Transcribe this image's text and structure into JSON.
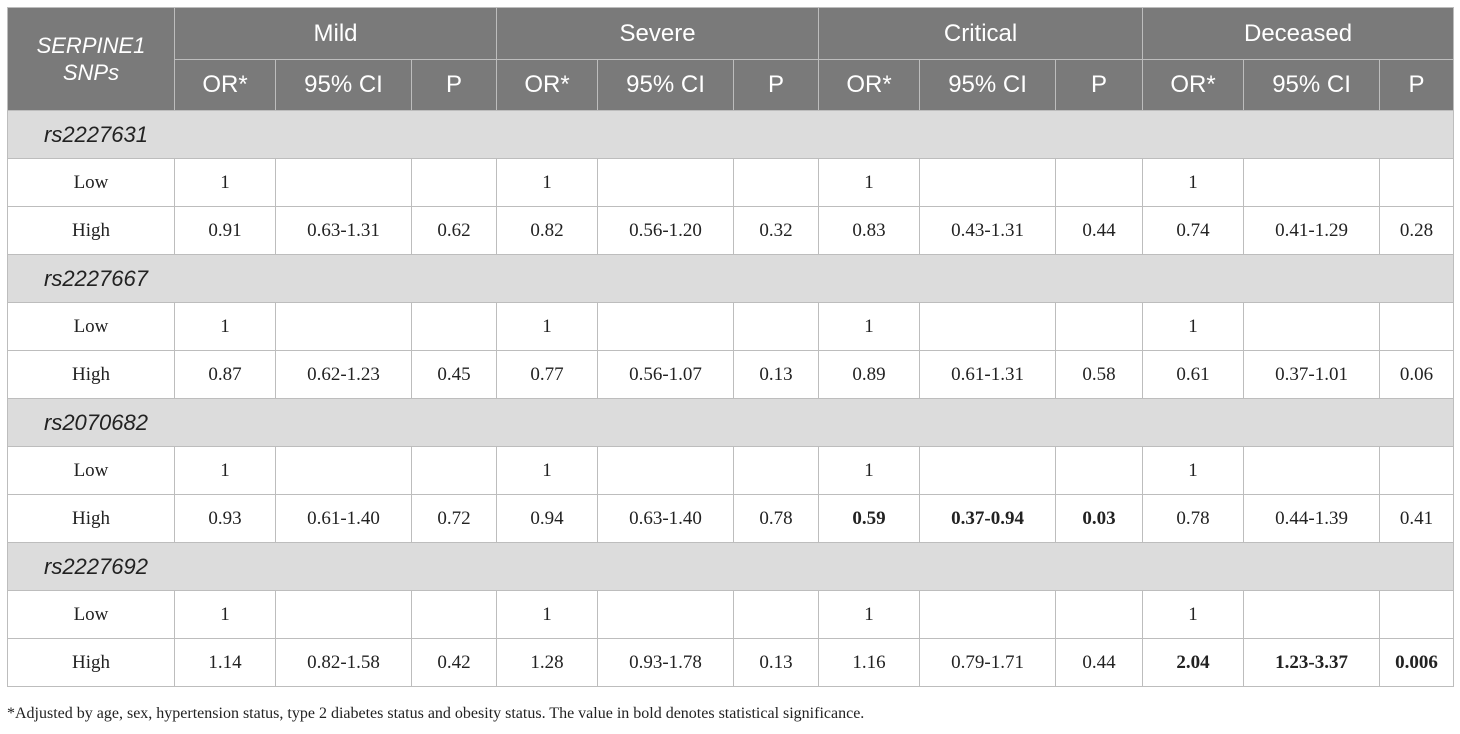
{
  "header": {
    "corner_line1": "SERPINE1",
    "corner_line2": "SNPs",
    "groups": [
      "Mild",
      "Severe",
      "Critical",
      "Deceased"
    ],
    "subheaders": [
      "OR*",
      "95% CI",
      "P"
    ]
  },
  "snps": [
    {
      "name": "rs2227631",
      "rows": [
        {
          "label": "Low",
          "cells": [
            {
              "v": "1"
            },
            {
              "v": ""
            },
            {
              "v": ""
            },
            {
              "v": "1"
            },
            {
              "v": ""
            },
            {
              "v": ""
            },
            {
              "v": "1"
            },
            {
              "v": ""
            },
            {
              "v": ""
            },
            {
              "v": "1"
            },
            {
              "v": ""
            },
            {
              "v": ""
            }
          ]
        },
        {
          "label": "High",
          "cells": [
            {
              "v": "0.91"
            },
            {
              "v": "0.63-1.31"
            },
            {
              "v": "0.62"
            },
            {
              "v": "0.82"
            },
            {
              "v": "0.56-1.20"
            },
            {
              "v": "0.32"
            },
            {
              "v": "0.83"
            },
            {
              "v": "0.43-1.31"
            },
            {
              "v": "0.44"
            },
            {
              "v": "0.74"
            },
            {
              "v": "0.41-1.29"
            },
            {
              "v": "0.28"
            }
          ]
        }
      ]
    },
    {
      "name": "rs2227667",
      "rows": [
        {
          "label": "Low",
          "cells": [
            {
              "v": "1"
            },
            {
              "v": ""
            },
            {
              "v": ""
            },
            {
              "v": "1"
            },
            {
              "v": ""
            },
            {
              "v": ""
            },
            {
              "v": "1"
            },
            {
              "v": ""
            },
            {
              "v": ""
            },
            {
              "v": "1"
            },
            {
              "v": ""
            },
            {
              "v": ""
            }
          ]
        },
        {
          "label": "High",
          "cells": [
            {
              "v": "0.87"
            },
            {
              "v": "0.62-1.23"
            },
            {
              "v": "0.45"
            },
            {
              "v": "0.77"
            },
            {
              "v": "0.56-1.07"
            },
            {
              "v": "0.13"
            },
            {
              "v": "0.89"
            },
            {
              "v": "0.61-1.31"
            },
            {
              "v": "0.58"
            },
            {
              "v": "0.61"
            },
            {
              "v": "0.37-1.01"
            },
            {
              "v": "0.06"
            }
          ]
        }
      ]
    },
    {
      "name": "rs2070682",
      "rows": [
        {
          "label": "Low",
          "cells": [
            {
              "v": "1"
            },
            {
              "v": ""
            },
            {
              "v": ""
            },
            {
              "v": "1"
            },
            {
              "v": ""
            },
            {
              "v": ""
            },
            {
              "v": "1"
            },
            {
              "v": ""
            },
            {
              "v": ""
            },
            {
              "v": "1"
            },
            {
              "v": ""
            },
            {
              "v": ""
            }
          ]
        },
        {
          "label": "High",
          "cells": [
            {
              "v": "0.93"
            },
            {
              "v": "0.61-1.40"
            },
            {
              "v": "0.72"
            },
            {
              "v": "0.94"
            },
            {
              "v": "0.63-1.40"
            },
            {
              "v": "0.78"
            },
            {
              "v": "0.59",
              "bold": true
            },
            {
              "v": "0.37-0.94",
              "bold": true
            },
            {
              "v": "0.03",
              "bold": true
            },
            {
              "v": "0.78"
            },
            {
              "v": "0.44-1.39"
            },
            {
              "v": "0.41"
            }
          ]
        }
      ]
    },
    {
      "name": "rs2227692",
      "rows": [
        {
          "label": "Low",
          "cells": [
            {
              "v": "1"
            },
            {
              "v": ""
            },
            {
              "v": ""
            },
            {
              "v": "1"
            },
            {
              "v": ""
            },
            {
              "v": ""
            },
            {
              "v": "1"
            },
            {
              "v": ""
            },
            {
              "v": ""
            },
            {
              "v": "1"
            },
            {
              "v": ""
            },
            {
              "v": ""
            }
          ]
        },
        {
          "label": "High",
          "cells": [
            {
              "v": "1.14"
            },
            {
              "v": "0.82-1.58"
            },
            {
              "v": "0.42"
            },
            {
              "v": "1.28"
            },
            {
              "v": "0.93-1.78"
            },
            {
              "v": "0.13"
            },
            {
              "v": "1.16"
            },
            {
              "v": "0.79-1.71"
            },
            {
              "v": "0.44"
            },
            {
              "v": "2.04",
              "bold": true
            },
            {
              "v": "1.23-3.37",
              "bold": true
            },
            {
              "v": "0.006",
              "bold": true
            }
          ]
        }
      ]
    }
  ],
  "footnote": "*Adjusted by age, sex, hypertension status, type 2 diabetes status and obesity status. The value in bold denotes statistical significance."
}
